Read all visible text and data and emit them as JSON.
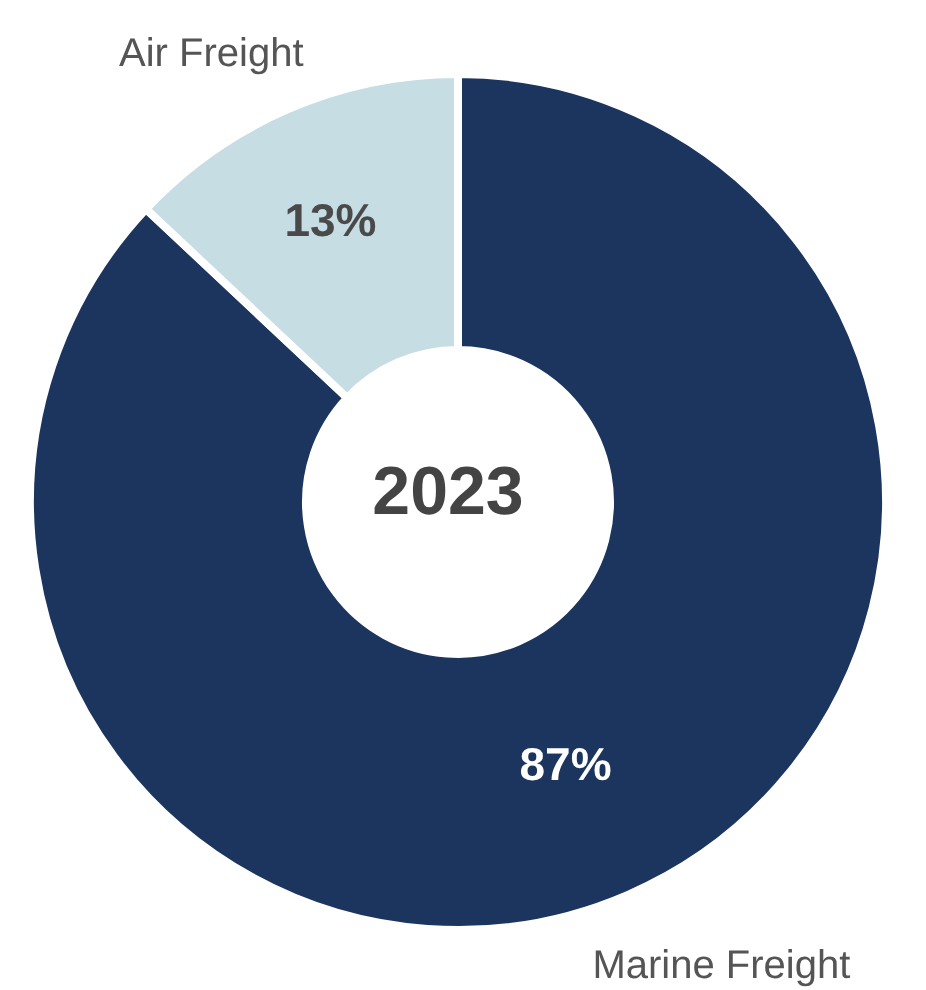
{
  "chart_data": {
    "type": "donut",
    "title": "2023",
    "categories": [
      "Marine Freight",
      "Air Freight"
    ],
    "values": [
      87,
      13
    ],
    "colors": [
      "#1b355e",
      "#c5dde3"
    ],
    "value_labels": [
      "87%",
      "13%"
    ]
  }
}
